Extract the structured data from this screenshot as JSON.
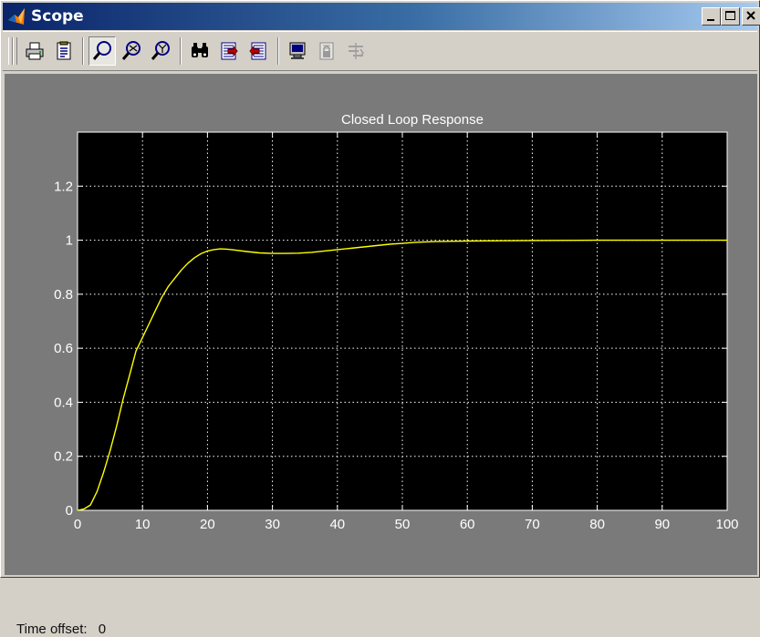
{
  "window": {
    "title": "Scope",
    "icon": "matlab-logo-icon",
    "controls": [
      "minimize-icon",
      "maximize-icon",
      "close-icon"
    ]
  },
  "toolbar": {
    "buttons": [
      {
        "id": "print",
        "icon": "printer-icon",
        "pressed": false
      },
      {
        "id": "parameters",
        "icon": "parameters-icon",
        "pressed": false
      },
      {
        "id": "zoom",
        "icon": "zoom-icon",
        "pressed": true
      },
      {
        "id": "zoom-x",
        "icon": "zoom-x-axis-icon",
        "pressed": false
      },
      {
        "id": "zoom-y",
        "icon": "zoom-y-axis-icon",
        "pressed": false
      },
      {
        "id": "autoscale",
        "icon": "binoculars-icon",
        "pressed": false
      },
      {
        "id": "save-axes",
        "icon": "save-axes-settings-icon",
        "pressed": false
      },
      {
        "id": "restore-axes",
        "icon": "restore-axes-settings-icon",
        "pressed": false
      },
      {
        "id": "floating-scope",
        "icon": "floating-scope-icon",
        "pressed": false
      },
      {
        "id": "lock-axes",
        "icon": "lock-axes-icon",
        "pressed": false,
        "disabled": true
      },
      {
        "id": "signal-selector",
        "icon": "signal-selector-icon",
        "pressed": false,
        "disabled": true
      }
    ]
  },
  "status": {
    "time_offset_label": "Time offset:",
    "time_offset_value": "0"
  },
  "colors": {
    "plot_background": "#000000",
    "figure_background": "#7a7a7a",
    "trace": "#ffff00",
    "axis_text": "#ffffff",
    "grid": "#ffffff"
  },
  "chart_data": {
    "type": "line",
    "title": "Closed Loop Response",
    "xlabel": "",
    "ylabel": "",
    "xlim": [
      0,
      100
    ],
    "ylim": [
      0,
      1.4
    ],
    "xticks": [
      0,
      10,
      20,
      30,
      40,
      50,
      60,
      70,
      80,
      90,
      100
    ],
    "yticks": [
      0,
      0.2,
      0.4,
      0.6,
      0.8,
      1,
      1.2
    ],
    "ytick_labels": [
      "0",
      "0.2",
      "0.4",
      "0.6",
      "0.8",
      "1",
      "1.2"
    ],
    "grid": true,
    "series": [
      {
        "color": "#ffff00",
        "x": [
          0,
          1,
          2,
          3,
          4,
          5,
          6,
          7,
          8,
          9,
          10,
          11,
          12,
          13,
          14,
          15,
          16,
          17,
          18,
          19,
          20,
          21,
          22,
          23,
          24,
          26,
          28,
          30,
          32,
          34,
          36,
          38,
          40,
          42,
          44,
          46,
          48,
          50,
          52,
          55,
          60,
          65,
          70,
          80,
          90,
          100
        ],
        "y": [
          0,
          0.005,
          0.02,
          0.07,
          0.14,
          0.22,
          0.31,
          0.41,
          0.5,
          0.59,
          0.64,
          0.69,
          0.74,
          0.79,
          0.83,
          0.86,
          0.89,
          0.915,
          0.935,
          0.95,
          0.96,
          0.965,
          0.968,
          0.967,
          0.964,
          0.958,
          0.953,
          0.951,
          0.951,
          0.952,
          0.955,
          0.96,
          0.965,
          0.97,
          0.975,
          0.98,
          0.985,
          0.988,
          0.992,
          0.995,
          0.997,
          0.998,
          0.999,
          1.0,
          1.0,
          1.0
        ]
      }
    ]
  }
}
